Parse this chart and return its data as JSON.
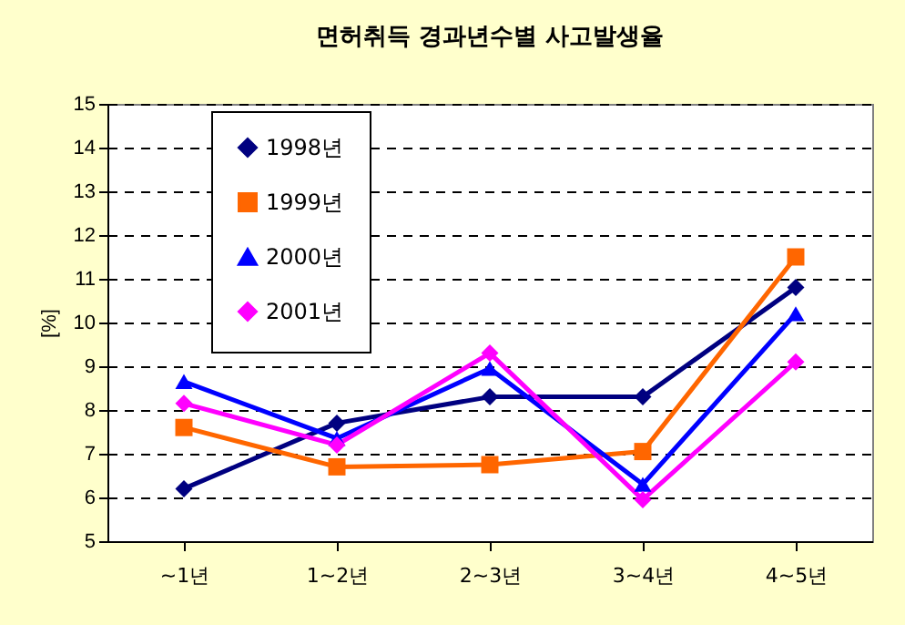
{
  "chart_data": {
    "type": "line",
    "title": "면허취득 경과년수별 사고발생율",
    "ylabel": "[%]",
    "categories": [
      "~1년",
      "1~2년",
      "2~3년",
      "3~4년",
      "4~5년"
    ],
    "series": [
      {
        "name": "1998년",
        "color": "#000080",
        "marker": "diamond",
        "values": [
          6.2,
          7.7,
          8.3,
          8.3,
          10.8
        ]
      },
      {
        "name": "1999년",
        "color": "#ff6600",
        "marker": "square",
        "values": [
          7.6,
          6.7,
          6.75,
          7.05,
          11.5
        ]
      },
      {
        "name": "2000년",
        "color": "#0000ff",
        "marker": "triangle",
        "values": [
          8.65,
          7.35,
          8.95,
          6.3,
          10.2
        ]
      },
      {
        "name": "2001년",
        "color": "#ff00ff",
        "marker": "diamond",
        "values": [
          8.15,
          7.2,
          9.3,
          5.95,
          9.1
        ]
      }
    ],
    "ylim": [
      5,
      15
    ],
    "yticks": [
      5,
      6,
      7,
      8,
      9,
      10,
      11,
      12,
      13,
      14,
      15
    ],
    "grid": "y",
    "legend": "top left",
    "line_style": "solid"
  }
}
